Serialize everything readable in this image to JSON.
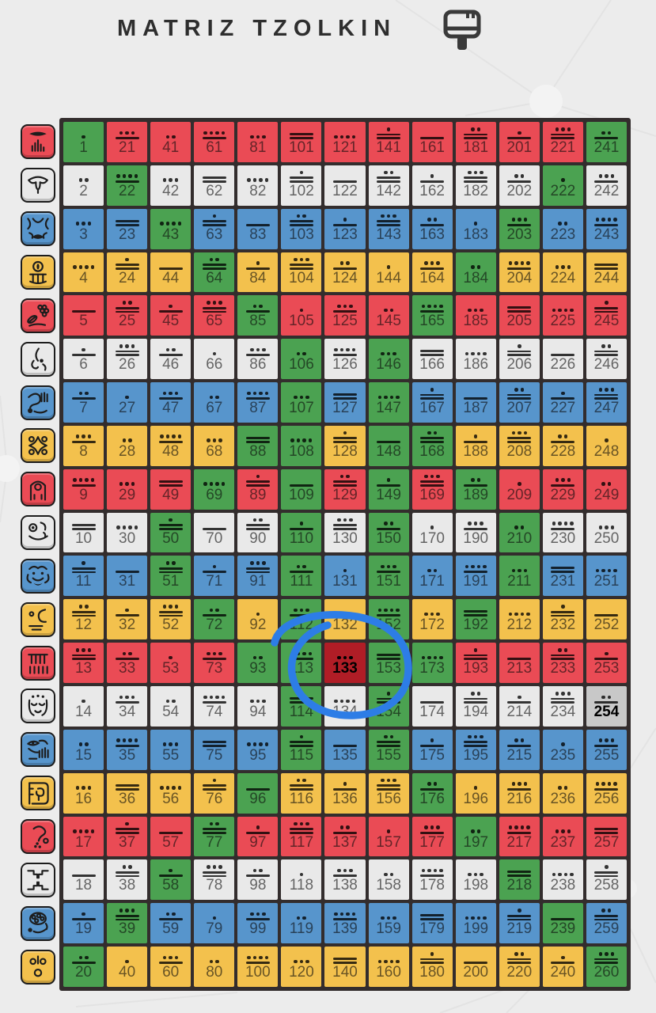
{
  "title": "MATRIZ TZOLKIN",
  "header": {
    "paint_button_icon": "format-paint-icon"
  },
  "palette": {
    "page_bg": "#ECECEC",
    "grid_frame": "#332D2D",
    "red": "#EA4B55",
    "white": "#E9E9E9",
    "blue": "#5795CC",
    "yellow": "#F3C14D",
    "green_portal": "#4BA251",
    "selected_red": "#B01D26",
    "today_gray": "#C8C8C8",
    "annotation_blue": "#2D7DE6",
    "title_color": "#2E2E2E",
    "icon_dark": "#3A3A3A"
  },
  "glyph_column": {
    "items": [
      {
        "id": "imix",
        "icon": "imix-dragon-icon",
        "color": "red"
      },
      {
        "id": "ik",
        "icon": "ik-wind-icon",
        "color": "white"
      },
      {
        "id": "akbal",
        "icon": "akbal-night-icon",
        "color": "blue"
      },
      {
        "id": "kan",
        "icon": "kan-seed-icon",
        "color": "yellow"
      },
      {
        "id": "chicchan",
        "icon": "chicchan-serpent-icon",
        "color": "red"
      },
      {
        "id": "cimi",
        "icon": "cimi-worldbridger-icon",
        "color": "white"
      },
      {
        "id": "manik",
        "icon": "manik-hand-icon",
        "color": "blue"
      },
      {
        "id": "lamat",
        "icon": "lamat-star-icon",
        "color": "yellow"
      },
      {
        "id": "muluc",
        "icon": "muluc-moon-icon",
        "color": "red"
      },
      {
        "id": "oc",
        "icon": "oc-dog-icon",
        "color": "white"
      },
      {
        "id": "chuen",
        "icon": "chuen-monkey-icon",
        "color": "blue"
      },
      {
        "id": "eb",
        "icon": "eb-human-icon",
        "color": "yellow"
      },
      {
        "id": "ben",
        "icon": "ben-skywalker-icon",
        "color": "red"
      },
      {
        "id": "ix",
        "icon": "ix-wizard-icon",
        "color": "white"
      },
      {
        "id": "men",
        "icon": "men-eagle-icon",
        "color": "blue"
      },
      {
        "id": "cib",
        "icon": "cib-warrior-icon",
        "color": "yellow"
      },
      {
        "id": "caban",
        "icon": "caban-earth-icon",
        "color": "red"
      },
      {
        "id": "etznab",
        "icon": "etznab-mirror-icon",
        "color": "white"
      },
      {
        "id": "cauac",
        "icon": "cauac-storm-icon",
        "color": "blue"
      },
      {
        "id": "ahau",
        "icon": "ahau-sun-icon",
        "color": "yellow"
      }
    ]
  },
  "tzolkin_grid": {
    "rows": 20,
    "cols": 13,
    "column_start_kins": [
      1,
      21,
      41,
      61,
      81,
      101,
      121,
      141,
      161,
      181,
      201,
      221,
      241
    ],
    "row_colors": [
      "red",
      "white",
      "blue",
      "yellow",
      "red",
      "white",
      "blue",
      "yellow",
      "red",
      "white",
      "blue",
      "yellow",
      "red",
      "white",
      "blue",
      "yellow",
      "red",
      "white",
      "blue",
      "yellow"
    ],
    "portal_kins": [
      1,
      20,
      22,
      39,
      43,
      50,
      51,
      58,
      64,
      69,
      72,
      77,
      85,
      88,
      93,
      96,
      106,
      107,
      108,
      109,
      110,
      111,
      112,
      113,
      114,
      115,
      146,
      147,
      148,
      149,
      150,
      151,
      152,
      153,
      154,
      155,
      165,
      168,
      173,
      176,
      184,
      189,
      192,
      197,
      203,
      210,
      211,
      218,
      222,
      239,
      241,
      260
    ],
    "selected_kin": 133,
    "today_kin": 254,
    "tone_rule": "tone=((kin-1) mod 13)+1; bars=floor(tone/5); dots=tone mod 5; dots drawn above bars"
  },
  "annotation": {
    "type": "hand-drawn-circle",
    "around_kin": 133
  }
}
